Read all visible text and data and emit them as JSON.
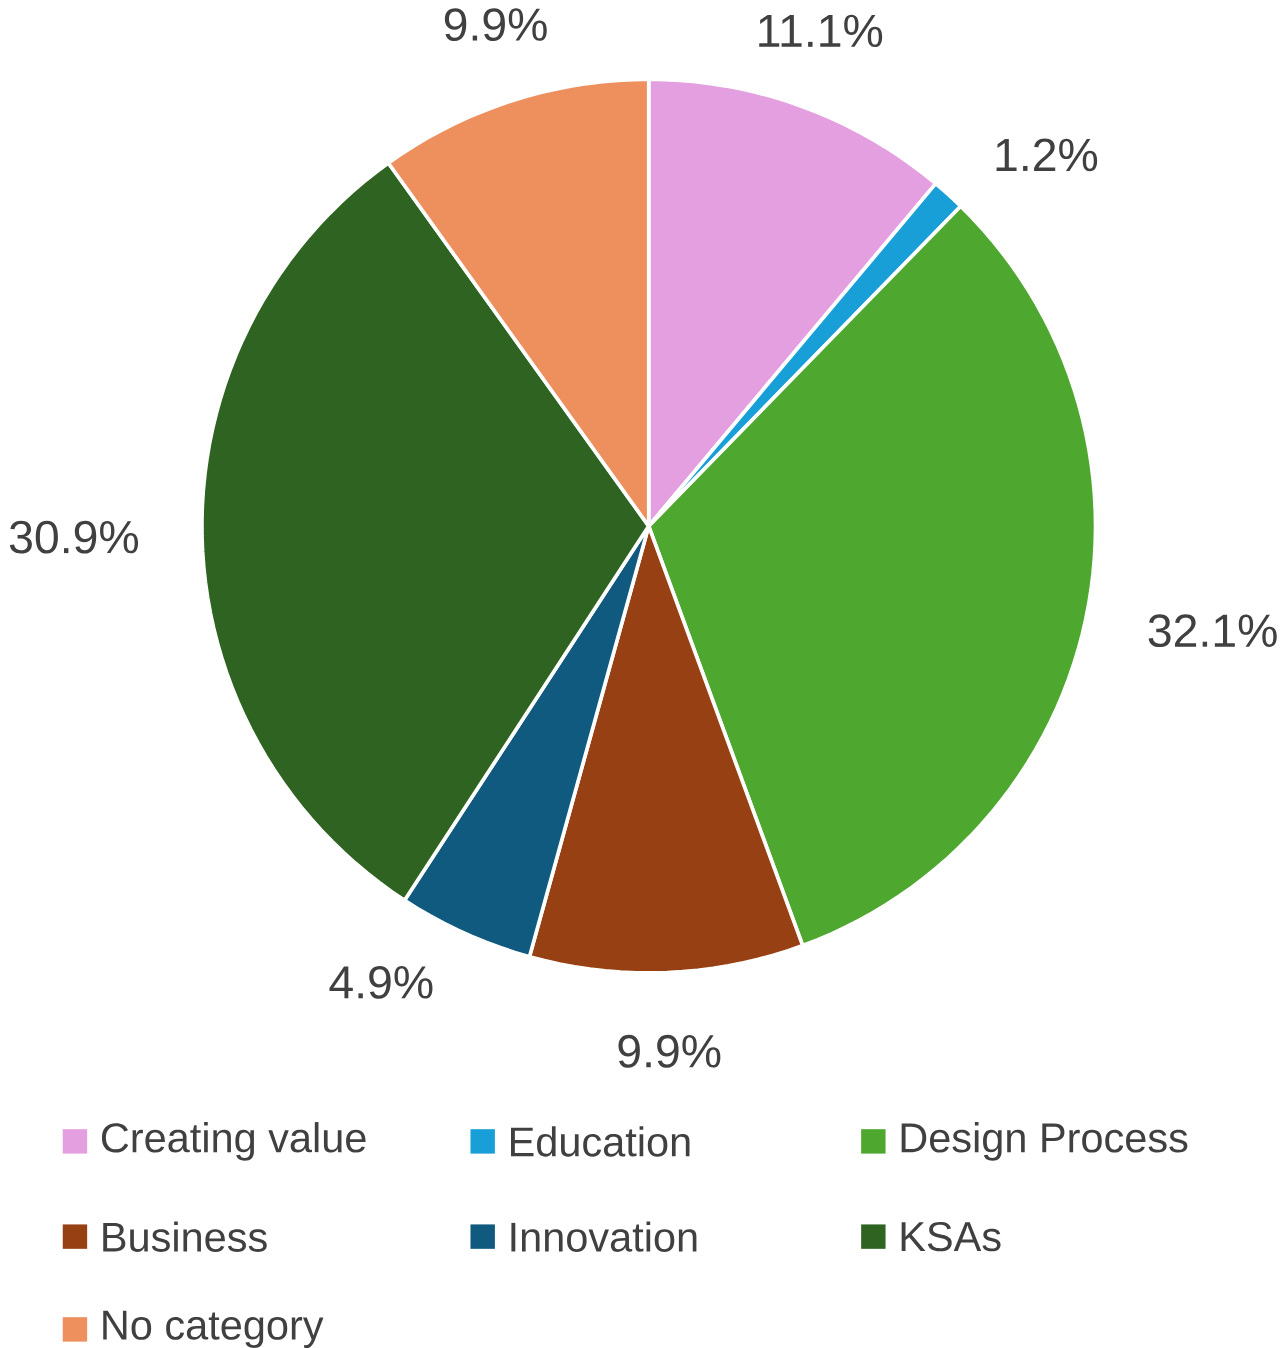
{
  "chart_data": {
    "type": "pie",
    "categories": [
      "Creating value",
      "Education",
      "Design Process",
      "Business",
      "Innovation",
      "KSAs",
      "No category"
    ],
    "values": [
      11.1,
      1.2,
      32.1,
      9.9,
      4.9,
      30.9,
      9.9
    ],
    "value_labels": [
      "11.1%",
      "1.2%",
      "32.1%",
      "9.9%",
      "4.9%",
      "30.9%",
      "9.9%"
    ],
    "colors": [
      "#e39fdf",
      "#189fd8",
      "#4ea72e",
      "#974013",
      "#0f5a7e",
      "#2e6321",
      "#ee8f5e"
    ],
    "legend": "bottom"
  }
}
